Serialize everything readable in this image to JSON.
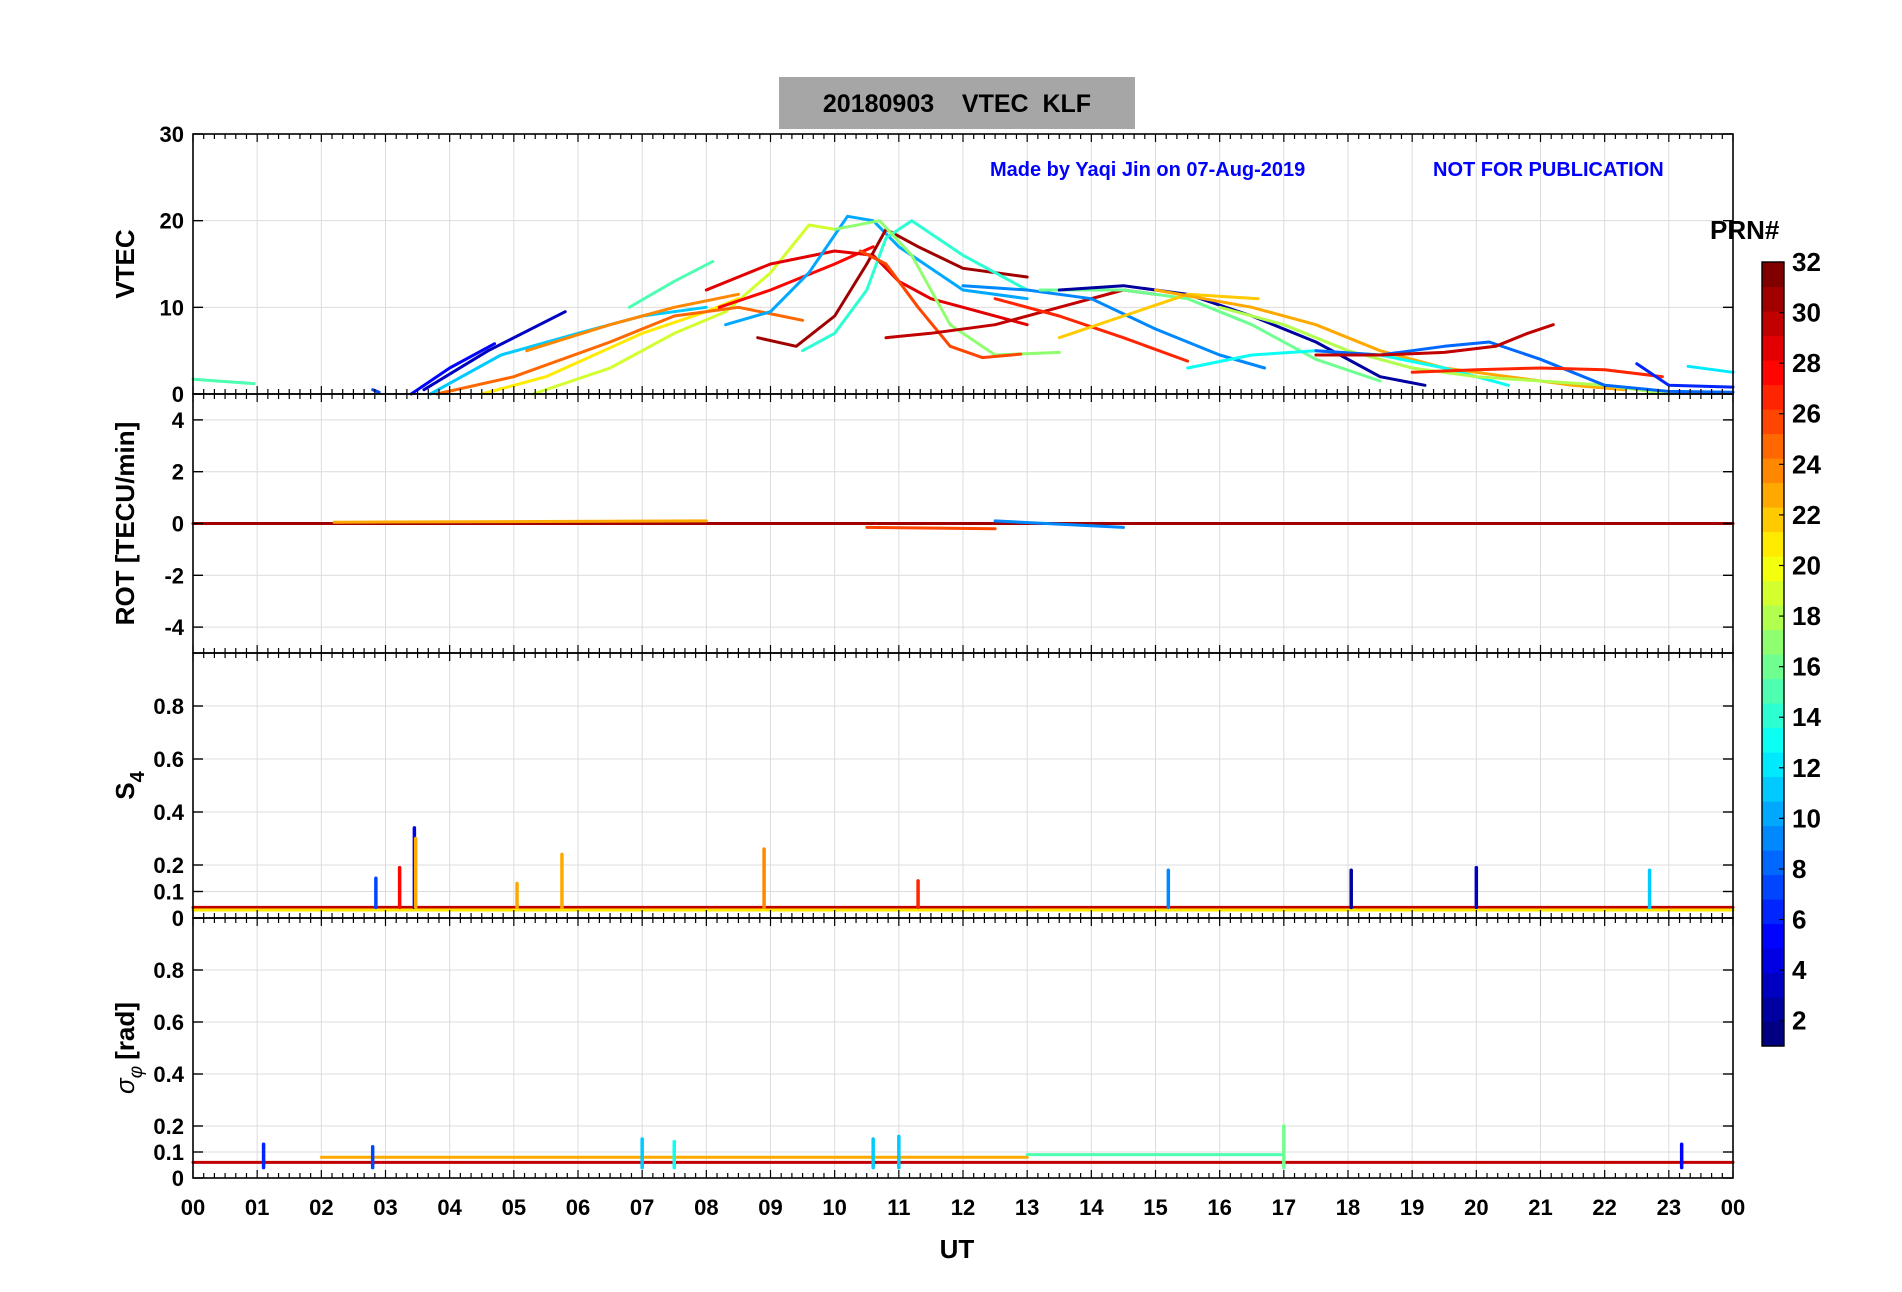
{
  "chart_data": {
    "type": "line",
    "title": "20180903    VTEC  KLF",
    "annotation_left": "Made by Yaqi Jin on 07-Aug-2019",
    "annotation_right": "NOT FOR PUBLICATION",
    "xlabel": "UT",
    "xlim": [
      0,
      24
    ],
    "xtick_labels": [
      "00",
      "01",
      "02",
      "03",
      "04",
      "05",
      "06",
      "07",
      "08",
      "09",
      "10",
      "11",
      "12",
      "13",
      "14",
      "15",
      "16",
      "17",
      "18",
      "19",
      "20",
      "21",
      "22",
      "23",
      "00"
    ],
    "colorbar": {
      "label": "PRN#",
      "range": [
        1,
        32
      ],
      "tick_labels": [
        "2",
        "4",
        "6",
        "8",
        "10",
        "12",
        "14",
        "16",
        "18",
        "20",
        "22",
        "24",
        "26",
        "28",
        "30",
        "32"
      ],
      "colormap": "jet"
    },
    "panels": [
      {
        "ylabel": "VTEC",
        "ylim": [
          0,
          30
        ],
        "ytick_labels": [
          "0",
          "10",
          "20",
          "30"
        ],
        "series": [
          {
            "prn": 5,
            "x": [
              3.4,
              4.0,
              4.7
            ],
            "y": [
              0,
              3,
              5.8
            ]
          },
          {
            "prn": 3,
            "x": [
              3.6,
              4.6,
              5.8
            ],
            "y": [
              0.5,
              5,
              9.5
            ]
          },
          {
            "prn": 11,
            "x": [
              3.7,
              4.8,
              6.0,
              7.0,
              8.0
            ],
            "y": [
              0,
              4.5,
              7,
              9,
              10
            ]
          },
          {
            "prn": 21,
            "x": [
              4.5,
              5.5,
              7.0,
              8.0,
              8.5
            ],
            "y": [
              0,
              2,
              7,
              9.5,
              11
            ]
          },
          {
            "prn": 19,
            "x": [
              5.3,
              6.5,
              7.5,
              8.3,
              9.0,
              9.6,
              10.0
            ],
            "y": [
              0,
              3,
              7,
              9.5,
              14,
              19.5,
              19
            ]
          },
          {
            "prn": 25,
            "x": [
              3.8,
              5.0,
              6.5,
              7.5,
              8.5,
              9.5
            ],
            "y": [
              0,
              2,
              6,
              9,
              10,
              8.5
            ]
          },
          {
            "prn": 24,
            "x": [
              5.2,
              6.5,
              7.5,
              8.5
            ],
            "y": [
              5,
              8,
              10,
              11.5
            ]
          },
          {
            "prn": 15,
            "x": [
              6.8,
              7.5,
              8.1
            ],
            "y": [
              10,
              13,
              15.3
            ]
          },
          {
            "prn": 28,
            "x": [
              8.2,
              9.0,
              10.0,
              10.6
            ],
            "y": [
              10,
              12,
              15,
              17
            ]
          },
          {
            "prn": 29,
            "x": [
              8.0,
              9.0,
              10.0,
              10.6,
              11.0,
              11.5,
              12.0,
              13.0
            ],
            "y": [
              12,
              15,
              16.5,
              16,
              13,
              11,
              10,
              8
            ]
          },
          {
            "prn": 10,
            "x": [
              8.3,
              9.0,
              9.6,
              10.2,
              10.6,
              11.0,
              12.0,
              13.0
            ],
            "y": [
              8,
              9.5,
              14,
              20.5,
              20,
              17,
              12,
              11
            ]
          },
          {
            "prn": 31,
            "x": [
              8.8,
              9.4,
              10.0,
              10.5,
              10.8,
              11.3,
              12.0,
              13.0
            ],
            "y": [
              6.5,
              5.5,
              9,
              15,
              19,
              17,
              14.5,
              13.5
            ]
          },
          {
            "prn": 14,
            "x": [
              9.5,
              10.0,
              10.5,
              10.8,
              11.2,
              12.0,
              13.0
            ],
            "y": [
              5,
              7,
              12,
              18,
              20,
              16,
              12
            ]
          },
          {
            "prn": 17,
            "x": [
              10.0,
              10.7,
              11.2,
              11.8,
              12.5,
              13.5
            ],
            "y": [
              19,
              20,
              16,
              8,
              4.5,
              4.8
            ]
          },
          {
            "prn": 26,
            "x": [
              10.4,
              10.8,
              11.3,
              11.8,
              12.3,
              12.9
            ],
            "y": [
              16.5,
              15,
              10,
              5.5,
              4.2,
              4.6
            ]
          },
          {
            "prn": 30,
            "x": [
              10.8,
              11.5,
              12.5,
              13.5,
              14.5,
              15.0
            ],
            "y": [
              6.5,
              7,
              8,
              10,
              12,
              11.5
            ]
          },
          {
            "prn": 27,
            "x": [
              12.5,
              13.5,
              14.5,
              15.5
            ],
            "y": [
              11,
              9,
              6.5,
              3.8
            ]
          },
          {
            "prn": 9,
            "x": [
              12.0,
              13.0,
              14.0,
              15.0,
              16.0,
              16.7
            ],
            "y": [
              12.5,
              12,
              11,
              7.5,
              4.5,
              3
            ]
          },
          {
            "prn": 16,
            "x": [
              13.2,
              14.5,
              15.5,
              16.5,
              17.5,
              18.5
            ],
            "y": [
              12,
              12,
              11,
              8,
              4,
              1.5
            ]
          },
          {
            "prn": 2,
            "x": [
              13.5,
              14.5,
              15.5,
              16.5,
              17.5,
              18.5,
              19.2
            ],
            "y": [
              12,
              12.5,
              11.5,
              9,
              6,
              2,
              1
            ]
          },
          {
            "prn": 22,
            "x": [
              13.5,
              14.5,
              15.5,
              16.6
            ],
            "y": [
              6.5,
              9,
              11.5,
              11
            ]
          },
          {
            "prn": 23,
            "x": [
              15.0,
              16.5,
              17.5,
              18.5,
              19.5,
              20.5,
              21.5,
              22.3
            ],
            "y": [
              12,
              10,
              8,
              5,
              3,
              2,
              1,
              0.5
            ]
          },
          {
            "prn": 13,
            "x": [
              15.5,
              16.5,
              17.5,
              18.5,
              19.5,
              20.5
            ],
            "y": [
              3,
              4.5,
              5,
              4.5,
              3,
              1
            ]
          },
          {
            "prn": 18,
            "x": [
              16.0,
              17.0,
              18.0,
              19.0,
              20.0,
              21.0,
              22.0,
              23.0
            ],
            "y": [
              10,
              8,
              5,
              3,
              2,
              1.5,
              1,
              0
            ]
          },
          {
            "prn": 8,
            "x": [
              17.5,
              18.5,
              19.5,
              20.2,
              21.0,
              22.0,
              23.0,
              24.0
            ],
            "y": [
              5,
              4.5,
              5.5,
              6,
              4,
              1,
              0.3,
              0.2
            ]
          },
          {
            "prn": 30,
            "x": [
              17.5,
              18.5,
              19.5,
              20.3,
              20.8,
              21.2
            ],
            "y": [
              4.5,
              4.5,
              4.8,
              5.5,
              7,
              8
            ]
          },
          {
            "prn": 27,
            "x": [
              19.0,
              20.0,
              21.0,
              22.0,
              22.9
            ],
            "y": [
              2.5,
              2.8,
              3,
              2.8,
              2
            ]
          },
          {
            "prn": 6,
            "x": [
              22.5,
              23.0,
              24.0
            ],
            "y": [
              3.5,
              1,
              0.8
            ]
          },
          {
            "prn": 12,
            "x": [
              23.3,
              24.0
            ],
            "y": [
              3.2,
              2.5
            ]
          },
          {
            "prn": 15,
            "x": [
              0.0,
              0.95
            ],
            "y": [
              1.7,
              1.2
            ]
          },
          {
            "prn": 7,
            "x": [
              2.8,
              2.9
            ],
            "y": [
              0.5,
              0.2
            ]
          }
        ]
      },
      {
        "ylabel": "ROT [TECU/min]",
        "ylim": [
          -5,
          5
        ],
        "ytick_labels": [
          "-4",
          "-2",
          "0",
          "2",
          "4"
        ],
        "series": [
          {
            "prn": 31,
            "x": [
              0.0,
              24.0
            ],
            "y": [
              0.0,
              0.0
            ]
          },
          {
            "prn": 23,
            "x": [
              2.2,
              8.0
            ],
            "y": [
              0.05,
              0.1
            ]
          },
          {
            "prn": 26,
            "x": [
              10.5,
              12.5
            ],
            "y": [
              -0.15,
              -0.2
            ]
          },
          {
            "prn": 9,
            "x": [
              12.5,
              14.5
            ],
            "y": [
              0.1,
              -0.15
            ]
          }
        ]
      },
      {
        "ylabel": "S4",
        "ylim": [
          0,
          1
        ],
        "ytick_labels": [
          "0",
          "0.1",
          "0.2",
          "0.4",
          "0.6",
          "0.8"
        ],
        "series": [
          {
            "prn": 30,
            "x": [
              0.0,
              24.0
            ],
            "y": [
              0.04,
              0.04
            ]
          },
          {
            "prn": 21,
            "x": [
              0.0,
              24.0
            ],
            "y": [
              0.03,
              0.03
            ]
          }
        ],
        "spikes": [
          {
            "prn": 4,
            "x": 3.45,
            "y": 0.34
          },
          {
            "prn": 23,
            "x": 3.47,
            "y": 0.3
          },
          {
            "prn": 28,
            "x": 3.22,
            "y": 0.19
          },
          {
            "prn": 23,
            "x": 5.75,
            "y": 0.24
          },
          {
            "prn": 24,
            "x": 8.9,
            "y": 0.26
          },
          {
            "prn": 7,
            "x": 2.85,
            "y": 0.15
          },
          {
            "prn": 23,
            "x": 5.05,
            "y": 0.13
          },
          {
            "prn": 27,
            "x": 11.3,
            "y": 0.14
          },
          {
            "prn": 9,
            "x": 15.2,
            "y": 0.18
          },
          {
            "prn": 2,
            "x": 18.05,
            "y": 0.18
          },
          {
            "prn": 3,
            "x": 20.0,
            "y": 0.19
          },
          {
            "prn": 11,
            "x": 22.7,
            "y": 0.18
          }
        ]
      },
      {
        "ylabel": "σ φ [rad]",
        "ylim": [
          0,
          1
        ],
        "ytick_labels": [
          "0",
          "0.1",
          "0.2",
          "0.4",
          "0.6",
          "0.8"
        ],
        "series": [
          {
            "prn": 30,
            "x": [
              0.0,
              24.0
            ],
            "y": [
              0.06,
              0.06
            ]
          },
          {
            "prn": 23,
            "x": [
              2.0,
              13.0
            ],
            "y": [
              0.08,
              0.08
            ]
          },
          {
            "prn": 15,
            "x": [
              13.0,
              17.0
            ],
            "y": [
              0.09,
              0.09
            ]
          }
        ],
        "spikes": [
          {
            "prn": 16,
            "x": 17.0,
            "y": 0.2
          },
          {
            "prn": 11,
            "x": 7.0,
            "y": 0.15
          },
          {
            "prn": 13,
            "x": 7.5,
            "y": 0.14
          },
          {
            "prn": 11,
            "x": 10.6,
            "y": 0.15
          },
          {
            "prn": 11,
            "x": 11.0,
            "y": 0.16
          },
          {
            "prn": 6,
            "x": 1.1,
            "y": 0.13
          },
          {
            "prn": 7,
            "x": 2.8,
            "y": 0.12
          },
          {
            "prn": 5,
            "x": 23.2,
            "y": 0.13
          }
        ]
      }
    ]
  }
}
